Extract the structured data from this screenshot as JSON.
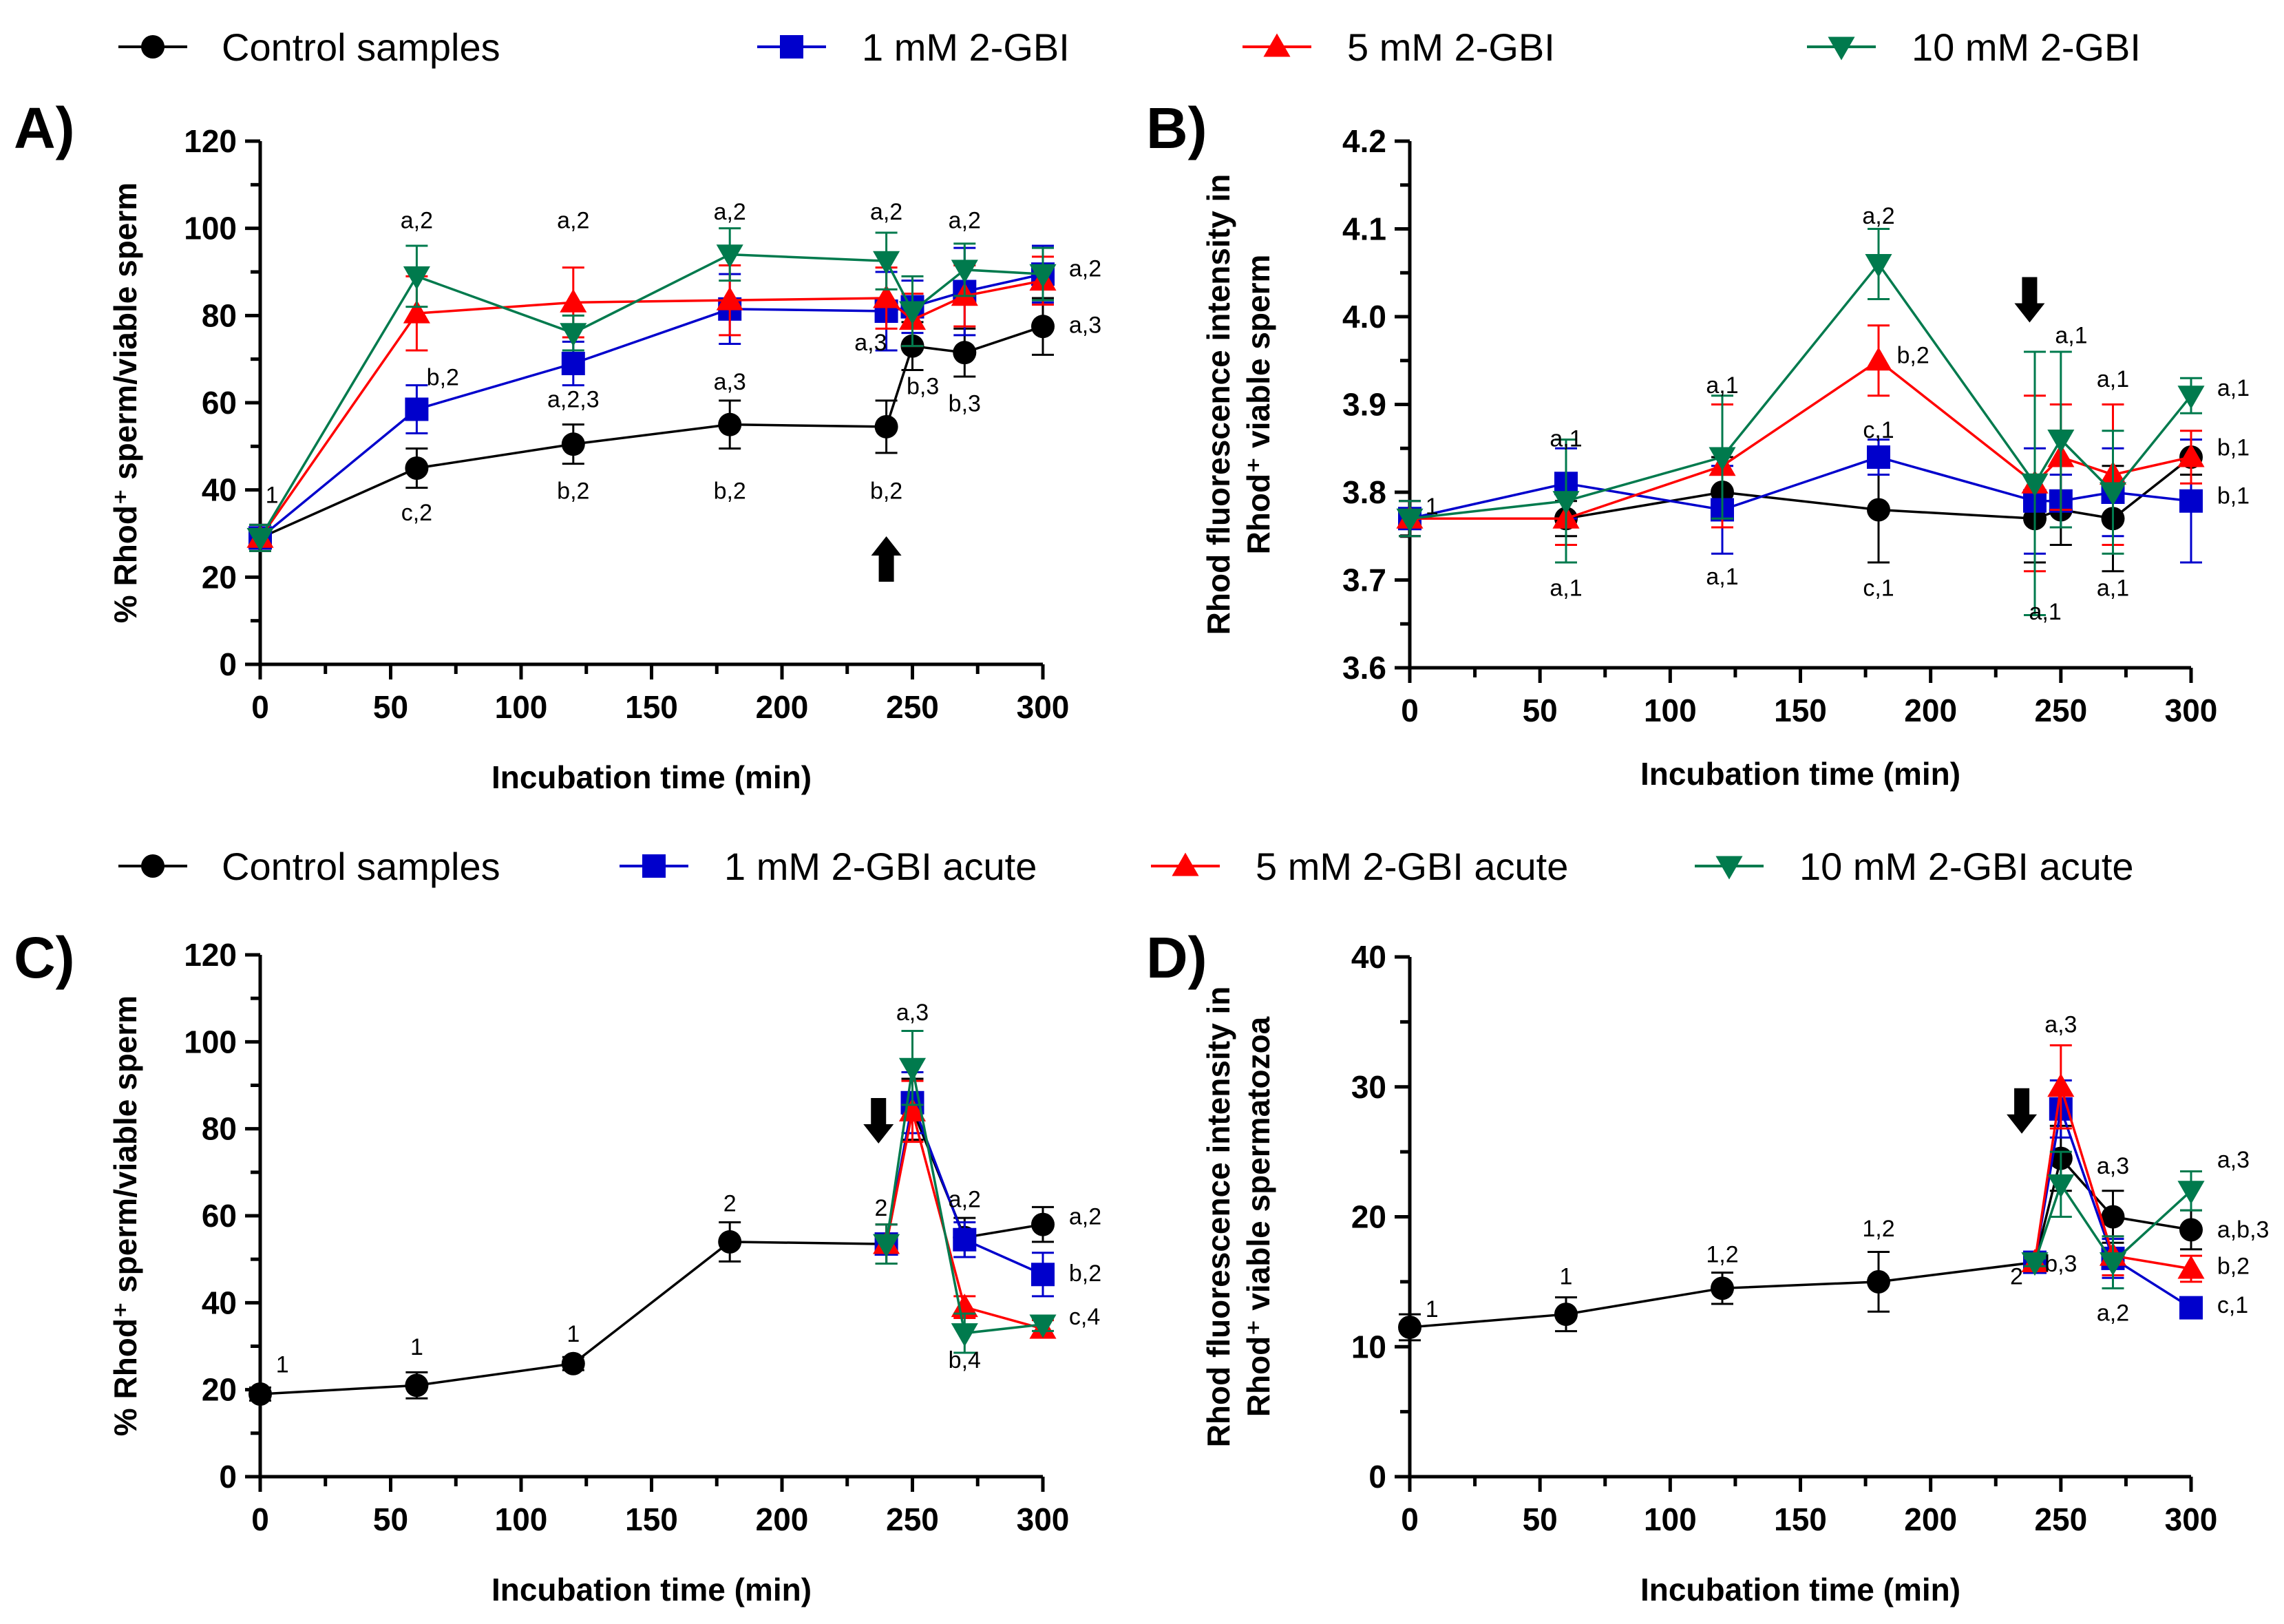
{
  "colors": {
    "control": "#000000",
    "mm1": "#0000cc",
    "mm5": "#ff0000",
    "mm10": "#007a4d"
  },
  "legend_top": {
    "items": [
      {
        "key": "control",
        "label": "Control samples",
        "marker": "circle"
      },
      {
        "key": "mm1",
        "label": "1 mM 2-GBI",
        "marker": "square"
      },
      {
        "key": "mm5",
        "label": "5 mM 2-GBI",
        "marker": "triangle-up"
      },
      {
        "key": "mm10",
        "label": "10 mM 2-GBI",
        "marker": "triangle-down"
      }
    ]
  },
  "legend_bottom": {
    "items": [
      {
        "key": "control",
        "label": "Control samples",
        "marker": "circle"
      },
      {
        "key": "mm1",
        "label": "1 mM 2-GBI acute",
        "marker": "square"
      },
      {
        "key": "mm5",
        "label": "5 mM 2-GBI acute",
        "marker": "triangle-up"
      },
      {
        "key": "mm10",
        "label": "10 mM 2-GBI acute",
        "marker": "triangle-down"
      }
    ]
  },
  "chart_data": [
    {
      "id": "A",
      "panel_label": "A)",
      "type": "line",
      "xlabel": "Incubation time (min)",
      "ylabel": "% Rhod⁺ sperm/viable sperm",
      "ylabel_lines": [
        "% Rhod⁺ sperm/viable sperm"
      ],
      "xlim": [
        0,
        300
      ],
      "ylim": [
        0,
        120
      ],
      "xticks": [
        0,
        50,
        100,
        150,
        200,
        250,
        300
      ],
      "yticks": [
        0,
        20,
        40,
        60,
        80,
        100,
        120
      ],
      "ytick_labels": [
        "0",
        "20",
        "40",
        "60",
        "80",
        "100",
        "120"
      ],
      "series": [
        {
          "key": "control",
          "name": "Control samples",
          "marker": "circle",
          "x": [
            0,
            60,
            120,
            180,
            240,
            250,
            270,
            300
          ],
          "y": [
            29,
            45,
            50.5,
            55,
            54.5,
            73,
            71.5,
            77.5
          ],
          "err": [
            3,
            4.5,
            4.5,
            5.5,
            6,
            5.5,
            5.5,
            6.5
          ]
        },
        {
          "key": "mm1",
          "name": "1 mM 2-GBI",
          "marker": "square",
          "x": [
            0,
            60,
            120,
            180,
            240,
            250,
            270,
            300
          ],
          "y": [
            29,
            58.5,
            69,
            81.5,
            81,
            82,
            85.5,
            89.5
          ],
          "err": [
            3,
            5.5,
            5,
            8,
            9,
            6,
            10,
            6.5
          ]
        },
        {
          "key": "mm5",
          "name": "5 mM 2-GBI",
          "marker": "triangle-up",
          "x": [
            0,
            60,
            120,
            180,
            240,
            250,
            270,
            300
          ],
          "y": [
            29,
            80.5,
            83,
            83.5,
            84,
            79,
            84.5,
            88
          ],
          "err": [
            3,
            8.5,
            8,
            8,
            7,
            6,
            7,
            5.5
          ]
        },
        {
          "key": "mm10",
          "name": "10 mM 2-GBI",
          "marker": "triangle-down",
          "x": [
            0,
            60,
            120,
            180,
            240,
            250,
            270,
            300
          ],
          "y": [
            29,
            89,
            76,
            94,
            92.5,
            81,
            90.5,
            89.5
          ],
          "err": [
            3,
            7,
            4,
            6,
            6.5,
            8,
            6,
            6
          ]
        }
      ],
      "annotations": [
        {
          "text": "1",
          "x": 2,
          "y": 37,
          "anchor": "start"
        },
        {
          "text": "a,2",
          "x": 60,
          "y": 100,
          "anchor": "middle"
        },
        {
          "text": "b,2",
          "x": 70,
          "y": 64,
          "anchor": "middle"
        },
        {
          "text": "c,2",
          "x": 60,
          "y": 33,
          "anchor": "middle"
        },
        {
          "text": "a,2",
          "x": 120,
          "y": 100,
          "anchor": "middle"
        },
        {
          "text": "a,2,3",
          "x": 120,
          "y": 59,
          "anchor": "middle"
        },
        {
          "text": "b,2",
          "x": 120,
          "y": 38,
          "anchor": "middle"
        },
        {
          "text": "a,2",
          "x": 180,
          "y": 102,
          "anchor": "middle"
        },
        {
          "text": "a,3",
          "x": 180,
          "y": 63,
          "anchor": "middle"
        },
        {
          "text": "b,2",
          "x": 180,
          "y": 38,
          "anchor": "middle"
        },
        {
          "text": "a,2",
          "x": 240,
          "y": 102,
          "anchor": "middle"
        },
        {
          "text": "a,3",
          "x": 234,
          "y": 72,
          "anchor": "middle"
        },
        {
          "text": "b,2",
          "x": 240,
          "y": 38,
          "anchor": "middle"
        },
        {
          "text": "b,3",
          "x": 254,
          "y": 62,
          "anchor": "middle"
        },
        {
          "text": "a,2",
          "x": 270,
          "y": 100,
          "anchor": "middle"
        },
        {
          "text": "b,3",
          "x": 270,
          "y": 58,
          "anchor": "middle"
        },
        {
          "text": "a,2",
          "x": 310,
          "y": 89,
          "anchor": "start"
        },
        {
          "text": "a,3",
          "x": 310,
          "y": 76,
          "anchor": "start"
        }
      ],
      "arrow": {
        "x": 240,
        "y": 24,
        "direction": "up"
      }
    },
    {
      "id": "B",
      "panel_label": "B)",
      "type": "line",
      "xlabel": "Incubation time (min)",
      "ylabel": "Rhod fluorescence intensity in Rhod⁺ viable sperm",
      "ylabel_lines": [
        "Rhod fluorescence intensity in",
        "Rhod⁺ viable sperm"
      ],
      "xlim": [
        0,
        300
      ],
      "ylim": [
        3.6,
        4.2
      ],
      "xticks": [
        0,
        50,
        100,
        150,
        200,
        250,
        300
      ],
      "yticks": [
        3.6,
        3.7,
        3.8,
        3.9,
        4.0,
        4.1,
        4.2
      ],
      "ytick_labels": [
        "3.6",
        "3.7",
        "3.8",
        "3.9",
        "4.0",
        "4.1",
        "4.2"
      ],
      "series": [
        {
          "key": "control",
          "name": "Control samples",
          "marker": "circle",
          "x": [
            0,
            60,
            120,
            180,
            240,
            250,
            270,
            300
          ],
          "y": [
            3.77,
            3.77,
            3.8,
            3.78,
            3.77,
            3.78,
            3.77,
            3.84
          ],
          "err": [
            0.02,
            0.02,
            0.04,
            0.06,
            0.05,
            0.04,
            0.06,
            0.02
          ]
        },
        {
          "key": "mm1",
          "name": "1 mM 2-GBI",
          "marker": "square",
          "x": [
            0,
            60,
            120,
            180,
            240,
            250,
            270,
            300
          ],
          "y": [
            3.77,
            3.81,
            3.78,
            3.84,
            3.79,
            3.79,
            3.8,
            3.79
          ],
          "err": [
            0.02,
            0.04,
            0.05,
            0.02,
            0.06,
            0.03,
            0.05,
            0.07
          ]
        },
        {
          "key": "mm5",
          "name": "5 mM 2-GBI",
          "marker": "triangle-up",
          "x": [
            0,
            60,
            120,
            180,
            240,
            250,
            270,
            300
          ],
          "y": [
            3.77,
            3.77,
            3.83,
            3.95,
            3.81,
            3.84,
            3.82,
            3.84
          ],
          "err": [
            0.02,
            0.03,
            0.07,
            0.04,
            0.1,
            0.06,
            0.08,
            0.03
          ]
        },
        {
          "key": "mm10",
          "name": "10 mM 2-GBI",
          "marker": "triangle-down",
          "x": [
            0,
            60,
            120,
            180,
            240,
            250,
            270,
            300
          ],
          "y": [
            3.77,
            3.79,
            3.84,
            4.06,
            3.81,
            3.86,
            3.8,
            3.91
          ],
          "err": [
            0.02,
            0.07,
            0.07,
            0.04,
            0.15,
            0.1,
            0.07,
            0.02
          ]
        }
      ],
      "annotations": [
        {
          "text": "1",
          "x": 6,
          "y": 3.775,
          "anchor": "start"
        },
        {
          "text": "a,1",
          "x": 60,
          "y": 3.852,
          "anchor": "middle"
        },
        {
          "text": "a,1",
          "x": 60,
          "y": 3.682,
          "anchor": "middle"
        },
        {
          "text": "a,1",
          "x": 120,
          "y": 3.913,
          "anchor": "middle"
        },
        {
          "text": "a,1",
          "x": 120,
          "y": 3.695,
          "anchor": "middle"
        },
        {
          "text": "a,2",
          "x": 180,
          "y": 4.106,
          "anchor": "middle"
        },
        {
          "text": "b,2",
          "x": 187,
          "y": 3.947,
          "anchor": "start"
        },
        {
          "text": "c,1",
          "x": 180,
          "y": 3.862,
          "anchor": "middle"
        },
        {
          "text": "c,1",
          "x": 180,
          "y": 3.682,
          "anchor": "middle"
        },
        {
          "text": "a,1",
          "x": 254,
          "y": 3.97,
          "anchor": "middle"
        },
        {
          "text": "a,1",
          "x": 244,
          "y": 3.655,
          "anchor": "middle"
        },
        {
          "text": "a,1",
          "x": 270,
          "y": 3.92,
          "anchor": "middle"
        },
        {
          "text": "a,1",
          "x": 270,
          "y": 3.682,
          "anchor": "middle"
        },
        {
          "text": "a,1",
          "x": 310,
          "y": 3.91,
          "anchor": "start"
        },
        {
          "text": "b,1",
          "x": 310,
          "y": 3.842,
          "anchor": "start"
        },
        {
          "text": "b,1",
          "x": 310,
          "y": 3.787,
          "anchor": "start"
        }
      ],
      "arrow": {
        "x": 238,
        "y": 4.02,
        "direction": "down"
      }
    },
    {
      "id": "C",
      "panel_label": "C)",
      "type": "line",
      "xlabel": "Incubation time (min)",
      "ylabel": "% Rhod⁺ sperm/viable sperm",
      "ylabel_lines": [
        "% Rhod⁺ sperm/viable sperm"
      ],
      "xlim": [
        0,
        300
      ],
      "ylim": [
        0,
        120
      ],
      "xticks": [
        0,
        50,
        100,
        150,
        200,
        250,
        300
      ],
      "yticks": [
        0,
        20,
        40,
        60,
        80,
        100,
        120
      ],
      "ytick_labels": [
        "0",
        "20",
        "40",
        "60",
        "80",
        "100",
        "120"
      ],
      "series": [
        {
          "key": "control",
          "name": "Control samples",
          "marker": "circle",
          "x": [
            0,
            60,
            120,
            180,
            240,
            250,
            270,
            300
          ],
          "y": [
            19,
            21,
            26,
            54,
            53.5,
            84.5,
            55,
            58
          ],
          "err": [
            1.5,
            3,
            1.5,
            4.5,
            4.5,
            7,
            4.5,
            4
          ]
        },
        {
          "key": "mm1",
          "name": "1 mM 2-GBI acute",
          "marker": "square",
          "x": [
            240,
            250,
            270,
            300
          ],
          "y": [
            53.5,
            86,
            54.5,
            46.5
          ],
          "err": [
            4.5,
            7,
            4,
            5
          ]
        },
        {
          "key": "mm5",
          "name": "5 mM 2-GBI acute",
          "marker": "triangle-up",
          "x": [
            240,
            250,
            270,
            300
          ],
          "y": [
            53.5,
            84,
            39,
            34
          ],
          "err": [
            4.5,
            7,
            2.5,
            2
          ]
        },
        {
          "key": "mm10",
          "name": "10 mM 2-GBI acute",
          "marker": "triangle-down",
          "x": [
            240,
            250,
            270,
            300
          ],
          "y": [
            53.5,
            94,
            33,
            35
          ],
          "err": [
            4.5,
            8.5,
            4.5,
            1.5
          ]
        }
      ],
      "annotations": [
        {
          "text": "1",
          "x": 6,
          "y": 24,
          "anchor": "start"
        },
        {
          "text": "1",
          "x": 60,
          "y": 28,
          "anchor": "middle"
        },
        {
          "text": "1",
          "x": 120,
          "y": 31,
          "anchor": "middle"
        },
        {
          "text": "2",
          "x": 180,
          "y": 61,
          "anchor": "middle"
        },
        {
          "text": "2",
          "x": 238,
          "y": 60,
          "anchor": "middle"
        },
        {
          "text": "a,3",
          "x": 250,
          "y": 105,
          "anchor": "middle"
        },
        {
          "text": "a,2",
          "x": 270,
          "y": 62,
          "anchor": "middle"
        },
        {
          "text": "b,4",
          "x": 270,
          "y": 25,
          "anchor": "middle"
        },
        {
          "text": "a,2",
          "x": 310,
          "y": 58,
          "anchor": "start"
        },
        {
          "text": "b,2",
          "x": 310,
          "y": 45,
          "anchor": "start"
        },
        {
          "text": "c,4",
          "x": 310,
          "y": 35,
          "anchor": "start"
        }
      ],
      "arrow": {
        "x": 237,
        "y": 82,
        "direction": "down"
      }
    },
    {
      "id": "D",
      "panel_label": "D)",
      "type": "line",
      "xlabel": "Incubation time (min)",
      "ylabel": "Rhod fluorescence intensity in Rhod⁺ viable spermatozoa",
      "ylabel_lines": [
        "Rhod fluorescence intensity in",
        "Rhod⁺ viable spermatozoa"
      ],
      "xlim": [
        0,
        300
      ],
      "ylim": [
        0,
        40
      ],
      "xticks": [
        0,
        50,
        100,
        150,
        200,
        250,
        300
      ],
      "yticks": [
        0,
        10,
        20,
        30,
        40
      ],
      "ytick_labels": [
        "0",
        "10",
        "20",
        "30",
        "40"
      ],
      "series": [
        {
          "key": "control",
          "name": "Control samples",
          "marker": "circle",
          "x": [
            0,
            60,
            120,
            180,
            240,
            250,
            270,
            300
          ],
          "y": [
            11.5,
            12.5,
            14.5,
            15,
            16.5,
            24.5,
            20,
            19
          ],
          "err": [
            1,
            1.3,
            1.2,
            2.3,
            0.3,
            2.5,
            2,
            1.5
          ]
        },
        {
          "key": "mm1",
          "name": "1 mM 2-GBI acute",
          "marker": "square",
          "x": [
            240,
            250,
            270,
            300
          ],
          "y": [
            16.5,
            28.3,
            16.8,
            13
          ],
          "err": [
            0.3,
            2.2,
            1.5,
            0.5
          ]
        },
        {
          "key": "mm5",
          "name": "5 mM 2-GBI acute",
          "marker": "triangle-up",
          "x": [
            240,
            250,
            270,
            300
          ],
          "y": [
            16.5,
            30,
            17,
            16
          ],
          "err": [
            0.3,
            3.2,
            1.5,
            1
          ]
        },
        {
          "key": "mm10",
          "name": "10 mM 2-GBI acute",
          "marker": "triangle-down",
          "x": [
            240,
            250,
            270,
            300
          ],
          "y": [
            16.5,
            22.5,
            16.5,
            22
          ],
          "err": [
            0.3,
            2.5,
            2,
            1.5
          ]
        }
      ],
      "annotations": [
        {
          "text": "1",
          "x": 6,
          "y": 12.3,
          "anchor": "start"
        },
        {
          "text": "1",
          "x": 60,
          "y": 14.8,
          "anchor": "middle"
        },
        {
          "text": "1,2",
          "x": 120,
          "y": 16.5,
          "anchor": "middle"
        },
        {
          "text": "1,2",
          "x": 180,
          "y": 18.5,
          "anchor": "middle"
        },
        {
          "text": "2",
          "x": 233,
          "y": 14.8,
          "anchor": "middle"
        },
        {
          "text": "a,3",
          "x": 250,
          "y": 34.2,
          "anchor": "middle"
        },
        {
          "text": "b,3",
          "x": 250,
          "y": 15.8,
          "anchor": "middle"
        },
        {
          "text": "a,3",
          "x": 270,
          "y": 23.3,
          "anchor": "middle"
        },
        {
          "text": "a,2",
          "x": 270,
          "y": 12,
          "anchor": "middle"
        },
        {
          "text": "a,3",
          "x": 310,
          "y": 23.8,
          "anchor": "start"
        },
        {
          "text": "a,b,3",
          "x": 310,
          "y": 18.4,
          "anchor": "start"
        },
        {
          "text": "b,2",
          "x": 310,
          "y": 15.6,
          "anchor": "start"
        },
        {
          "text": "c,1",
          "x": 310,
          "y": 12.6,
          "anchor": "start"
        }
      ],
      "arrow": {
        "x": 235,
        "y": 28.2,
        "direction": "down"
      }
    }
  ]
}
